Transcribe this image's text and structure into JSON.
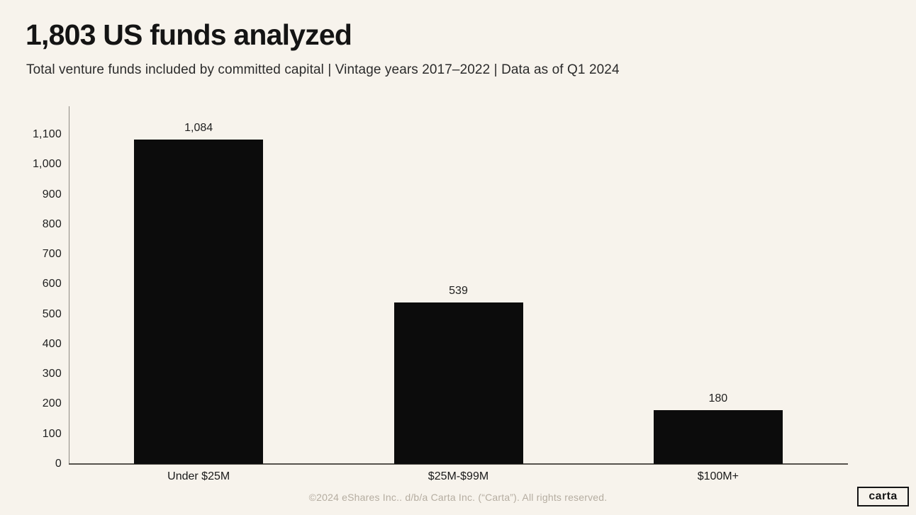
{
  "header": {
    "title": "1,803 US funds analyzed",
    "subtitle": "Total venture funds included by committed capital | Vintage years 2017–2022 | Data as of Q1 2024"
  },
  "chart_data": {
    "type": "bar",
    "title": "1,803 US funds analyzed",
    "subtitle": "Total venture funds included by committed capital | Vintage years 2017-2022 | Data as of Q1 2024",
    "categories": [
      "Under $25M",
      "$25M-$99M",
      "$100M+"
    ],
    "values": [
      1084,
      539,
      180
    ],
    "value_labels": [
      "1,084",
      "539",
      "180"
    ],
    "xlabel": "",
    "ylabel": "",
    "y_ticks": [
      0,
      100,
      200,
      300,
      400,
      500,
      600,
      700,
      800,
      900,
      1000,
      1100
    ],
    "y_tick_labels": [
      "0",
      "100",
      "200",
      "300",
      "400",
      "500",
      "600",
      "700",
      "800",
      "900",
      "1,000",
      "1,100"
    ],
    "ylim": [
      0,
      1195
    ],
    "grid": false,
    "legend": "none",
    "bar_color": "#0c0c0c",
    "background_color": "#f7f3ec"
  },
  "footer": {
    "copyright": "©2024 eShares Inc.. d/b/a Carta Inc. (“Carta”). All rights reserved.",
    "logo_text": "carta"
  }
}
